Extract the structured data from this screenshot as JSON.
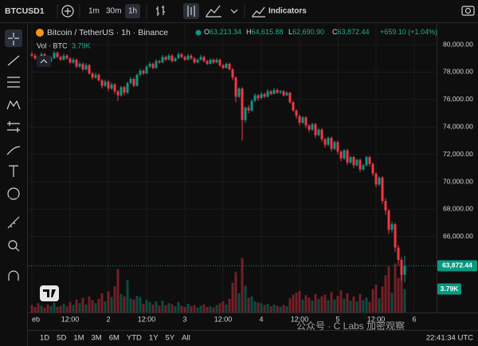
{
  "toolbar": {
    "symbol": "BTCUSD1",
    "intervals": [
      "1m",
      "30m",
      "1h"
    ],
    "indicators": "Indicators"
  },
  "legend": {
    "title": "Bitcoin / TetherUS · 1h · Binance",
    "ohlc": [
      {
        "label": "O",
        "value": "63,213.34"
      },
      {
        "label": "H",
        "value": "64,615.88"
      },
      {
        "label": "L",
        "value": "62,690.90"
      },
      {
        "label": "C",
        "value": "63,872.44"
      }
    ],
    "change": "+659.10 (+1.04%)",
    "volume_label": "Vol · BTC",
    "volume_value": "3.79K"
  },
  "chart_data": {
    "type": "candlestick",
    "up_color": "#089981",
    "down_color": "#f23645",
    "grid": true,
    "xlim": [
      -1,
      127
    ],
    "xticks": [
      {
        "value": 0,
        "label": "eb"
      },
      {
        "value": 12,
        "label": "12:00"
      },
      {
        "value": 24,
        "label": "2"
      },
      {
        "value": 36,
        "label": "12:00"
      },
      {
        "value": 48,
        "label": "3"
      },
      {
        "value": 60,
        "label": "12:00"
      },
      {
        "value": 72,
        "label": "4"
      },
      {
        "value": 84,
        "label": "12:00"
      },
      {
        "value": 96,
        "label": "5"
      },
      {
        "value": 108,
        "label": "12:00"
      },
      {
        "value": 120,
        "label": "6"
      }
    ],
    "ylim": [
      60465,
      81512
    ],
    "yticks": [
      {
        "value": 66000,
        "label": "66,000.00"
      },
      {
        "value": 68000,
        "label": "68,000.00"
      },
      {
        "value": 70000,
        "label": "70,000.00"
      },
      {
        "value": 72000,
        "label": "72,000.00"
      },
      {
        "value": 74000,
        "label": "74,000.00"
      },
      {
        "value": 76000,
        "label": "76,000.00"
      },
      {
        "value": 78000,
        "label": "78,000.00"
      },
      {
        "value": 80000,
        "label": "80,000.00"
      }
    ],
    "volume_ylim": [
      0,
      9000
    ],
    "last_price": {
      "value": 63872.44,
      "label": "63,872.44"
    },
    "last_volume": {
      "value": 3790,
      "label": "3.79K"
    },
    "candles": [
      [
        79300,
        79500,
        79100,
        79200
      ],
      [
        79200,
        79350,
        78900,
        79000
      ],
      [
        79000,
        79150,
        78750,
        78900
      ],
      [
        78900,
        79450,
        78850,
        79300
      ],
      [
        79300,
        79400,
        79000,
        79100
      ],
      [
        79100,
        79200,
        78650,
        78800
      ],
      [
        78800,
        79150,
        78700,
        79000
      ],
      [
        79000,
        79550,
        78950,
        79400
      ],
      [
        79400,
        79500,
        79000,
        79100
      ],
      [
        79100,
        79200,
        78800,
        78900
      ],
      [
        78900,
        79350,
        78850,
        79200
      ],
      [
        79200,
        79300,
        78900,
        79000
      ],
      [
        79000,
        79100,
        78600,
        78700
      ],
      [
        78700,
        79050,
        78600,
        78900
      ],
      [
        78900,
        79000,
        78300,
        78400
      ],
      [
        78400,
        78750,
        78300,
        78600
      ],
      [
        78600,
        78700,
        78050,
        78200
      ],
      [
        78200,
        78650,
        78100,
        78500
      ],
      [
        78500,
        78600,
        77800,
        77900
      ],
      [
        77900,
        78000,
        77450,
        77600
      ],
      [
        77600,
        77950,
        77500,
        77800
      ],
      [
        77800,
        77900,
        77300,
        77400
      ],
      [
        77400,
        77500,
        76800,
        77000
      ],
      [
        77000,
        77450,
        76900,
        77300
      ],
      [
        77300,
        77400,
        76600,
        76800
      ],
      [
        76800,
        77250,
        76700,
        77100
      ],
      [
        77100,
        77200,
        76400,
        76600
      ],
      [
        76600,
        76700,
        75900,
        76300
      ],
      [
        76300,
        77000,
        76200,
        76900
      ],
      [
        76900,
        77000,
        76300,
        76500
      ],
      [
        76500,
        77300,
        76400,
        77200
      ],
      [
        77200,
        77650,
        77100,
        77500
      ],
      [
        77500,
        77600,
        76900,
        77000
      ],
      [
        77000,
        77900,
        76950,
        77800
      ],
      [
        77800,
        78250,
        77700,
        78100
      ],
      [
        78100,
        78200,
        77800,
        77900
      ],
      [
        77900,
        78500,
        77850,
        78400
      ],
      [
        78400,
        78750,
        78300,
        78600
      ],
      [
        78600,
        78700,
        78200,
        78300
      ],
      [
        78300,
        78950,
        78250,
        78800
      ],
      [
        78800,
        78900,
        78600,
        78700
      ],
      [
        78700,
        79250,
        78650,
        79100
      ],
      [
        79100,
        79200,
        78800,
        78900
      ],
      [
        78900,
        79350,
        78850,
        79200
      ],
      [
        79200,
        79300,
        78700,
        78800
      ],
      [
        78800,
        79100,
        78750,
        79000
      ],
      [
        79000,
        79450,
        78950,
        79300
      ],
      [
        79300,
        79400,
        79000,
        79100
      ],
      [
        79100,
        79200,
        78800,
        78900
      ],
      [
        78900,
        79350,
        78850,
        79200
      ],
      [
        79200,
        79300,
        78900,
        79000
      ],
      [
        79000,
        79100,
        78600,
        78700
      ],
      [
        78700,
        79000,
        78650,
        78900
      ],
      [
        78900,
        79250,
        78850,
        79100
      ],
      [
        79100,
        79200,
        78700,
        78800
      ],
      [
        78800,
        78900,
        78500,
        78600
      ],
      [
        78600,
        79000,
        78550,
        78900
      ],
      [
        78900,
        79000,
        78600,
        78700
      ],
      [
        78700,
        79050,
        78650,
        78900
      ],
      [
        78900,
        79000,
        78400,
        78500
      ],
      [
        78500,
        78600,
        78200,
        78300
      ],
      [
        78300,
        78700,
        78250,
        78600
      ],
      [
        78600,
        78700,
        78100,
        78200
      ],
      [
        78200,
        78300,
        77400,
        77600
      ],
      [
        77600,
        77700,
        75800,
        76200
      ],
      [
        76200,
        76900,
        76100,
        76800
      ],
      [
        76800,
        76900,
        73000,
        74500
      ],
      [
        74500,
        75500,
        74300,
        75400
      ],
      [
        75400,
        75600,
        75000,
        75200
      ],
      [
        75200,
        76000,
        75100,
        75900
      ],
      [
        75900,
        76450,
        75800,
        76300
      ],
      [
        76300,
        76400,
        75900,
        76100
      ],
      [
        76100,
        76550,
        76000,
        76400
      ],
      [
        76400,
        76500,
        76100,
        76200
      ],
      [
        76200,
        76750,
        76150,
        76600
      ],
      [
        76600,
        76700,
        76300,
        76400
      ],
      [
        76400,
        76850,
        76350,
        76700
      ],
      [
        76700,
        76800,
        76400,
        76500
      ],
      [
        76500,
        76700,
        76400,
        76600
      ],
      [
        76600,
        76700,
        76200,
        76300
      ],
      [
        76300,
        76600,
        76250,
        76500
      ],
      [
        76500,
        76550,
        75700,
        75800
      ],
      [
        75800,
        75900,
        75100,
        75200
      ],
      [
        75200,
        75300,
        74600,
        74800
      ],
      [
        74800,
        74900,
        74100,
        74300
      ],
      [
        74300,
        74800,
        74200,
        74700
      ],
      [
        74700,
        74800,
        73900,
        74100
      ],
      [
        74100,
        74200,
        73600,
        73800
      ],
      [
        73800,
        74300,
        73700,
        74200
      ],
      [
        74200,
        74300,
        73200,
        73400
      ],
      [
        73400,
        73900,
        73300,
        73800
      ],
      [
        73800,
        73900,
        72900,
        73100
      ],
      [
        73100,
        73200,
        72500,
        72700
      ],
      [
        72700,
        73300,
        72600,
        73200
      ],
      [
        73200,
        73300,
        72200,
        72400
      ],
      [
        72400,
        73000,
        72300,
        72900
      ],
      [
        72900,
        73000,
        72000,
        72200
      ],
      [
        72200,
        72300,
        71500,
        71700
      ],
      [
        71700,
        72400,
        71600,
        72300
      ],
      [
        72300,
        72400,
        71200,
        71400
      ],
      [
        71400,
        71900,
        71300,
        71800
      ],
      [
        71800,
        71900,
        71000,
        71200
      ],
      [
        71200,
        71700,
        71100,
        71600
      ],
      [
        71600,
        71700,
        70700,
        70900
      ],
      [
        70900,
        71300,
        70800,
        71200
      ],
      [
        71200,
        71900,
        71100,
        71800
      ],
      [
        71800,
        71900,
        71100,
        71300
      ],
      [
        71300,
        71400,
        70400,
        70600
      ],
      [
        70600,
        70700,
        69600,
        69800
      ],
      [
        69800,
        70400,
        69700,
        70300
      ],
      [
        70300,
        70400,
        68400,
        68600
      ],
      [
        68600,
        68800,
        67600,
        67900
      ],
      [
        67900,
        68000,
        66200,
        66500
      ],
      [
        66500,
        67100,
        66300,
        66900
      ],
      [
        66900,
        67000,
        64900,
        65200
      ],
      [
        65200,
        65400,
        63900,
        64300
      ],
      [
        64300,
        64500,
        62800,
        63213.34
      ],
      [
        63213.34,
        64615.88,
        62690.9,
        63872.44
      ]
    ],
    "volume": [
      1200,
      900,
      1500,
      1100,
      800,
      1300,
      1000,
      1600,
      900,
      1100,
      1400,
      1000,
      1700,
      1200,
      2100,
      1500,
      2400,
      1300,
      2600,
      2000,
      1500,
      2200,
      3100,
      1800,
      3400,
      2500,
      4200,
      7000,
      3000,
      2600,
      5200,
      2300,
      2100,
      2700,
      2500,
      1400,
      2000,
      1700,
      1300,
      1800,
      1100,
      1900,
      1200,
      1500,
      1300,
      1000,
      1700,
      1100,
      900,
      1400,
      1000,
      1200,
      800,
      1100,
      1300,
      900,
      1000,
      800,
      1200,
      1500,
      1800,
      1300,
      2200,
      4800,
      6500,
      3100,
      8800,
      4300,
      2400,
      2600,
      1800,
      1600,
      1500,
      1200,
      1400,
      1000,
      1300,
      1100,
      900,
      1200,
      1000,
      2300,
      2900,
      3200,
      3500,
      2100,
      2800,
      2400,
      1900,
      3000,
      2200,
      2600,
      2900,
      2000,
      3300,
      2100,
      2700,
      3600,
      2200,
      3100,
      1900,
      2600,
      1800,
      3000,
      2000,
      2400,
      1700,
      3800,
      4500,
      2300,
      4200,
      6000,
      7400,
      3200,
      7900,
      5600,
      8200,
      3790
    ]
  },
  "ranges": [
    "1D",
    "5D",
    "1M",
    "3M",
    "6M",
    "YTD",
    "1Y",
    "5Y",
    "All"
  ],
  "clock": "22:41:34 UTC",
  "watermark": "公众号 · C Labs 加密观察"
}
